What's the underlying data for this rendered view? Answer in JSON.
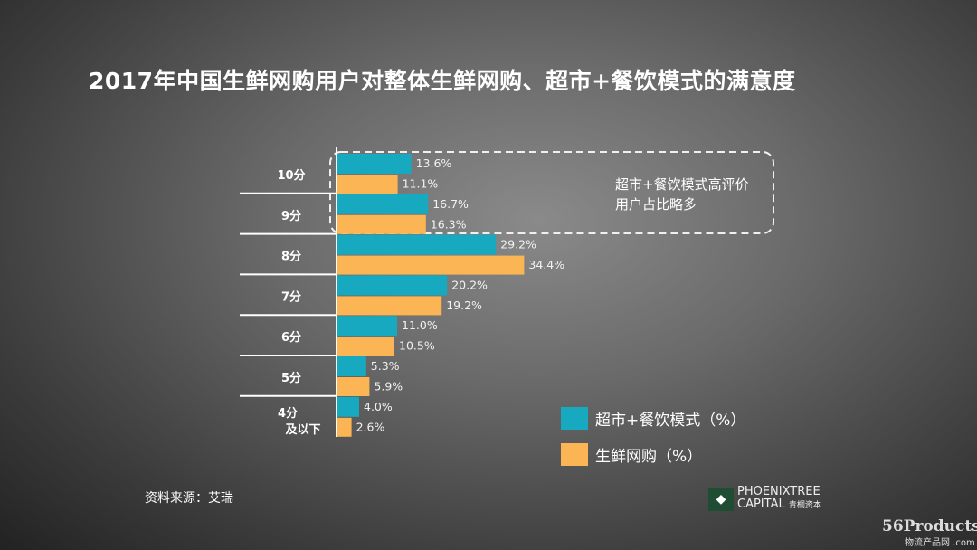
{
  "title": "2017年中国生鲜网购用户对整体生鲜网购、超市+餐饮模式的满意度",
  "chart_data": {
    "type": "bar",
    "orientation": "horizontal",
    "categories": [
      "10分",
      "9分",
      "8分",
      "7分",
      "6分",
      "5分",
      "4分及以下"
    ],
    "series": [
      {
        "name": "超市+餐饮模式（%）",
        "color": "#16a9c0",
        "values": [
          13.6,
          16.7,
          29.2,
          20.2,
          11.0,
          5.3,
          4.0
        ]
      },
      {
        "name": "生鲜网购（%）",
        "color": "#fbb555",
        "values": [
          11.1,
          16.3,
          34.4,
          19.2,
          10.5,
          5.9,
          2.6
        ]
      }
    ],
    "value_labels": [
      [
        "13.6%",
        "16.7%",
        "29.2%",
        "20.2%",
        "11.0%",
        "5.3%",
        "4.0%"
      ],
      [
        "11.1%",
        "16.3%",
        "34.4%",
        "19.2%",
        "10.5%",
        "5.9%",
        "2.6%"
      ]
    ],
    "legend": "bottom-right",
    "annotation": "超市+餐饮模式高评价用户占比略多"
  },
  "source": "资料来源：艾瑞",
  "logo": {
    "line1": "PHOENIXTREE",
    "line2": "CAPITAL",
    "cn": "青桐资本"
  },
  "watermark": {
    "main": "56Products",
    "sub": "物流产品网 .com"
  }
}
